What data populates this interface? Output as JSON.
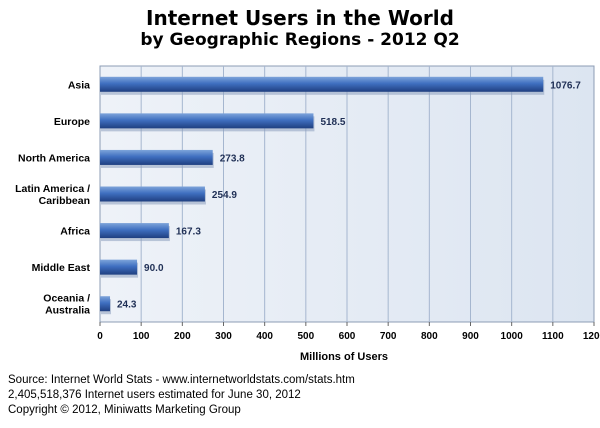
{
  "chart_data": {
    "type": "bar",
    "orientation": "horizontal",
    "title": "Internet Users in the World",
    "subtitle": "by Geographic Regions - 2012 Q2",
    "xlabel": "Millions of Users",
    "ylabel": "",
    "xlim": [
      0,
      1200
    ],
    "xticks": [
      "0",
      "100",
      "200",
      "300",
      "400",
      "500",
      "600",
      "700",
      "800",
      "900",
      "1000",
      "1100",
      "1200"
    ],
    "grid": "vertical",
    "categories": [
      [
        "Asia"
      ],
      [
        "Europe"
      ],
      [
        "North America"
      ],
      [
        "Latin America /",
        "Caribbean"
      ],
      [
        "Africa"
      ],
      [
        "Middle East"
      ],
      [
        "Oceania  /",
        "Australia"
      ]
    ],
    "values": [
      1076.7,
      518.5,
      273.8,
      254.9,
      167.3,
      90.0,
      24.3
    ],
    "value_labels": [
      "1076.7",
      "518.5",
      "273.8",
      "254.9",
      "167.3",
      "90.0",
      "24.3"
    ],
    "colors": {
      "plot_bg": "#dce5f1",
      "grid": "#a5b6cf",
      "bar_top": "#7ea4da",
      "bar_mid": "#3f6fc0",
      "bar_bottom": "#1f3f80",
      "label": "#1f2f55"
    }
  },
  "source": {
    "line1": "Source: Internet World Stats - www.internetworldstats.com/stats.htm",
    "line2": "2,405,518,376 Internet users estimated for June 30, 2012",
    "line3": "Copyright © 2012, Miniwatts Marketing Group"
  }
}
